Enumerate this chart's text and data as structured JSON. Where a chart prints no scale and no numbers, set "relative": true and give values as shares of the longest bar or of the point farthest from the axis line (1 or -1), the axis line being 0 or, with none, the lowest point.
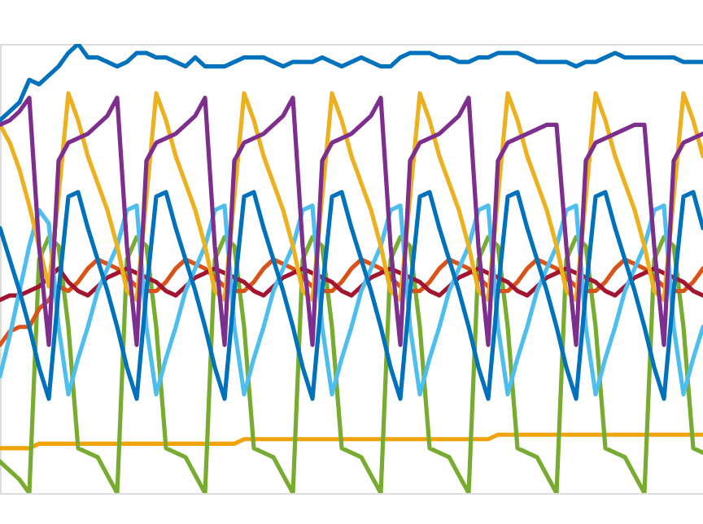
{
  "chart_data": {
    "type": "line",
    "relative": true,
    "grid": false,
    "marker": "none",
    "line_style": "solid",
    "categories": [
      null,
      null,
      null,
      null,
      null,
      null,
      null,
      null,
      null,
      null,
      null,
      null,
      null,
      null,
      null,
      null,
      null,
      null,
      null,
      null,
      null,
      null,
      null,
      null,
      null,
      null,
      null,
      null,
      null,
      null,
      null,
      null,
      null,
      null,
      null,
      null,
      null,
      null,
      null,
      null,
      null,
      null,
      null,
      null,
      null,
      null,
      null,
      null,
      null,
      null,
      null,
      null,
      null,
      null,
      null,
      null,
      null,
      null,
      null,
      null,
      null,
      null,
      null,
      null,
      null,
      null,
      null,
      null,
      null,
      null,
      null,
      null,
      null
    ],
    "series": [
      {
        "color": "#f0a30a",
        "values": [
          0.1,
          0.1,
          0.1,
          0.1,
          0.11,
          0.11,
          0.11,
          0.11,
          0.11,
          0.11,
          0.11,
          0.11,
          0.11,
          0.11,
          0.11,
          0.11,
          0.11,
          0.11,
          0.11,
          0.11,
          0.11,
          0.11,
          0.11,
          0.11,
          0.11,
          0.12,
          0.12,
          0.12,
          0.12,
          0.12,
          0.12,
          0.12,
          0.12,
          0.12,
          0.12,
          0.12,
          0.12,
          0.12,
          0.12,
          0.12,
          0.12,
          0.12,
          0.12,
          0.12,
          0.12,
          0.12,
          0.12,
          0.12,
          0.12,
          0.12,
          0.12,
          0.13,
          0.13,
          0.13,
          0.13,
          0.13,
          0.13,
          0.13,
          0.13,
          0.13,
          0.13,
          0.13,
          0.13,
          0.13,
          0.13,
          0.13,
          0.13,
          0.13,
          0.13,
          0.13,
          0.13,
          0.13,
          0.13
        ]
      },
      {
        "color": "#77ac30",
        "values": [
          0.07,
          0.05,
          0.03,
          0.0,
          0.52,
          0.57,
          0.55,
          0.37,
          0.1,
          0.09,
          0.08,
          0.04,
          0.0,
          0.52,
          0.57,
          0.55,
          0.37,
          0.1,
          0.09,
          0.08,
          0.04,
          0.0,
          0.52,
          0.57,
          0.55,
          0.37,
          0.1,
          0.09,
          0.08,
          0.04,
          0.0,
          0.52,
          0.57,
          0.55,
          0.37,
          0.1,
          0.09,
          0.08,
          0.04,
          0.0,
          0.52,
          0.57,
          0.55,
          0.37,
          0.1,
          0.09,
          0.08,
          0.04,
          0.0,
          0.52,
          0.57,
          0.55,
          0.37,
          0.1,
          0.09,
          0.08,
          0.04,
          0.0,
          0.52,
          0.57,
          0.55,
          0.37,
          0.1,
          0.09,
          0.08,
          0.04,
          0.0,
          0.52,
          0.57,
          0.55,
          0.37,
          0.1,
          0.09
        ]
      },
      {
        "color": "#d95319",
        "values": [
          0.33,
          0.36,
          0.37,
          0.37,
          0.41,
          0.43,
          0.46,
          0.45,
          0.47,
          0.5,
          0.52,
          0.51,
          0.5,
          0.48,
          0.46,
          0.45,
          0.45,
          0.47,
          0.5,
          0.52,
          0.51,
          0.5,
          0.48,
          0.46,
          0.45,
          0.45,
          0.47,
          0.5,
          0.52,
          0.51,
          0.5,
          0.48,
          0.46,
          0.45,
          0.45,
          0.47,
          0.5,
          0.52,
          0.51,
          0.5,
          0.48,
          0.46,
          0.45,
          0.45,
          0.47,
          0.5,
          0.52,
          0.51,
          0.5,
          0.48,
          0.46,
          0.45,
          0.45,
          0.47,
          0.5,
          0.52,
          0.51,
          0.5,
          0.48,
          0.46,
          0.45,
          0.45,
          0.47,
          0.5,
          0.52,
          0.51,
          0.5,
          0.48,
          0.46,
          0.45,
          0.45,
          0.47,
          0.5
        ]
      },
      {
        "color": "#a2142f",
        "values": [
          0.43,
          0.44,
          0.44,
          0.45,
          0.46,
          0.48,
          0.5,
          0.47,
          0.45,
          0.44,
          0.46,
          0.48,
          0.49,
          0.5,
          0.49,
          0.48,
          0.47,
          0.45,
          0.44,
          0.46,
          0.48,
          0.49,
          0.5,
          0.49,
          0.48,
          0.47,
          0.45,
          0.44,
          0.46,
          0.48,
          0.49,
          0.5,
          0.49,
          0.48,
          0.47,
          0.45,
          0.44,
          0.46,
          0.48,
          0.49,
          0.5,
          0.49,
          0.48,
          0.47,
          0.45,
          0.44,
          0.46,
          0.48,
          0.49,
          0.5,
          0.49,
          0.48,
          0.47,
          0.45,
          0.44,
          0.46,
          0.48,
          0.49,
          0.5,
          0.49,
          0.48,
          0.47,
          0.45,
          0.44,
          0.46,
          0.48,
          0.49,
          0.5,
          0.49,
          0.48,
          0.47,
          0.45,
          0.44
        ]
      },
      {
        "color": "#4dbeee",
        "values": [
          0.26,
          0.35,
          0.45,
          0.55,
          0.63,
          0.6,
          0.37,
          0.22,
          0.3,
          0.37,
          0.45,
          0.5,
          0.55,
          0.63,
          0.64,
          0.37,
          0.22,
          0.3,
          0.37,
          0.45,
          0.5,
          0.55,
          0.63,
          0.64,
          0.37,
          0.22,
          0.3,
          0.37,
          0.45,
          0.5,
          0.55,
          0.63,
          0.64,
          0.37,
          0.22,
          0.3,
          0.37,
          0.45,
          0.5,
          0.55,
          0.63,
          0.64,
          0.37,
          0.22,
          0.3,
          0.37,
          0.45,
          0.5,
          0.55,
          0.63,
          0.64,
          0.37,
          0.22,
          0.3,
          0.37,
          0.45,
          0.5,
          0.55,
          0.63,
          0.64,
          0.37,
          0.22,
          0.3,
          0.37,
          0.45,
          0.5,
          0.55,
          0.63,
          0.64,
          0.37,
          0.22,
          0.3,
          0.37
        ]
      },
      {
        "color": "#edb120",
        "values": [
          0.82,
          0.78,
          0.72,
          0.64,
          0.55,
          0.46,
          0.66,
          0.89,
          0.83,
          0.75,
          0.69,
          0.63,
          0.55,
          0.45,
          0.43,
          0.66,
          0.89,
          0.83,
          0.75,
          0.69,
          0.63,
          0.55,
          0.45,
          0.43,
          0.66,
          0.89,
          0.83,
          0.75,
          0.69,
          0.63,
          0.55,
          0.45,
          0.43,
          0.66,
          0.89,
          0.83,
          0.75,
          0.69,
          0.63,
          0.55,
          0.45,
          0.43,
          0.66,
          0.89,
          0.83,
          0.75,
          0.69,
          0.63,
          0.55,
          0.45,
          0.43,
          0.66,
          0.89,
          0.83,
          0.75,
          0.69,
          0.63,
          0.55,
          0.45,
          0.43,
          0.66,
          0.89,
          0.83,
          0.75,
          0.69,
          0.63,
          0.55,
          0.45,
          0.43,
          0.66,
          0.89,
          0.83,
          0.75
        ]
      },
      {
        "color": "#7e2f8e",
        "values": [
          0.82,
          0.83,
          0.85,
          0.88,
          0.55,
          0.33,
          0.74,
          0.78,
          0.79,
          0.8,
          0.82,
          0.84,
          0.88,
          0.55,
          0.33,
          0.74,
          0.78,
          0.79,
          0.8,
          0.82,
          0.84,
          0.88,
          0.55,
          0.33,
          0.74,
          0.78,
          0.79,
          0.8,
          0.82,
          0.84,
          0.88,
          0.55,
          0.33,
          0.74,
          0.78,
          0.79,
          0.8,
          0.82,
          0.84,
          0.88,
          0.55,
          0.33,
          0.74,
          0.78,
          0.79,
          0.8,
          0.82,
          0.84,
          0.88,
          0.55,
          0.33,
          0.74,
          0.78,
          0.79,
          0.8,
          0.81,
          0.82,
          0.82,
          0.55,
          0.33,
          0.74,
          0.78,
          0.79,
          0.8,
          0.81,
          0.82,
          0.82,
          0.55,
          0.33,
          0.74,
          0.78,
          0.79,
          0.8
        ]
      },
      {
        "color": "#0072bd",
        "values": [
          0.59,
          0.52,
          0.45,
          0.37,
          0.28,
          0.21,
          0.45,
          0.66,
          0.67,
          0.59,
          0.52,
          0.45,
          0.37,
          0.28,
          0.21,
          0.45,
          0.66,
          0.67,
          0.59,
          0.52,
          0.45,
          0.37,
          0.28,
          0.21,
          0.45,
          0.66,
          0.67,
          0.59,
          0.52,
          0.45,
          0.37,
          0.28,
          0.21,
          0.45,
          0.66,
          0.67,
          0.59,
          0.52,
          0.45,
          0.37,
          0.28,
          0.21,
          0.45,
          0.66,
          0.67,
          0.59,
          0.52,
          0.45,
          0.37,
          0.28,
          0.21,
          0.45,
          0.66,
          0.67,
          0.59,
          0.52,
          0.45,
          0.37,
          0.28,
          0.21,
          0.45,
          0.66,
          0.67,
          0.59,
          0.52,
          0.45,
          0.37,
          0.28,
          0.21,
          0.45,
          0.66,
          0.67,
          0.59
        ]
      },
      {
        "color": "#0072bd",
        "values": [
          0.83,
          0.85,
          0.87,
          0.92,
          0.91,
          0.93,
          0.95,
          0.98,
          1.0,
          0.97,
          0.97,
          0.96,
          0.95,
          0.96,
          0.98,
          0.98,
          0.97,
          0.97,
          0.96,
          0.95,
          0.97,
          0.95,
          0.95,
          0.95,
          0.96,
          0.97,
          0.97,
          0.97,
          0.96,
          0.95,
          0.96,
          0.96,
          0.96,
          0.97,
          0.96,
          0.95,
          0.96,
          0.97,
          0.96,
          0.95,
          0.95,
          0.97,
          0.98,
          0.98,
          0.98,
          0.97,
          0.97,
          0.96,
          0.96,
          0.97,
          0.97,
          0.98,
          0.98,
          0.98,
          0.97,
          0.96,
          0.96,
          0.96,
          0.96,
          0.95,
          0.96,
          0.96,
          0.97,
          0.98,
          0.97,
          0.97,
          0.97,
          0.97,
          0.97,
          0.97,
          0.96,
          0.96,
          0.96
        ]
      }
    ]
  }
}
